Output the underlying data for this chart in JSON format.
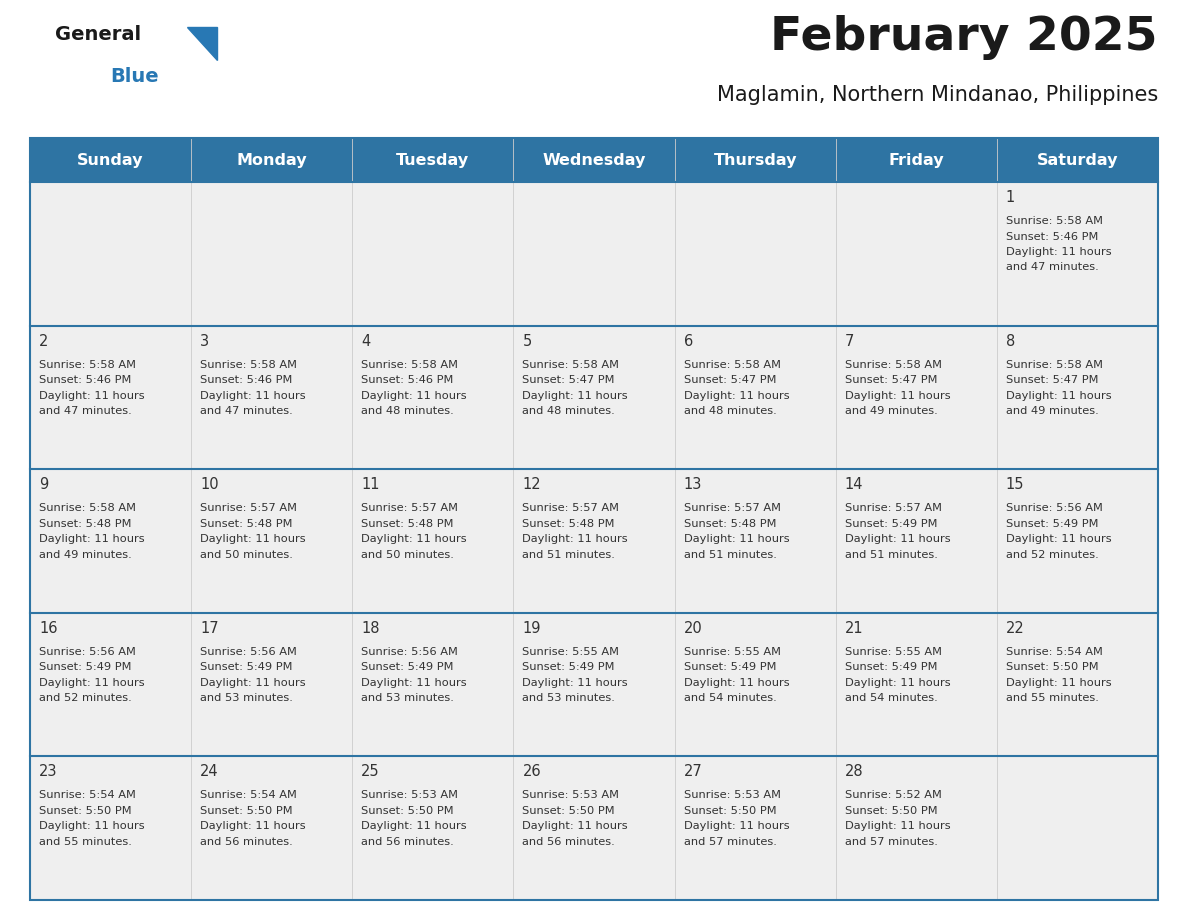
{
  "title": "February 2025",
  "subtitle": "Maglamin, Northern Mindanao, Philippines",
  "header_bg": "#2E74A3",
  "header_text_color": "#FFFFFF",
  "day_names": [
    "Sunday",
    "Monday",
    "Tuesday",
    "Wednesday",
    "Thursday",
    "Friday",
    "Saturday"
  ],
  "cell_bg": "#EFEFEF",
  "divider_color": "#2E74A3",
  "text_color": "#333333",
  "logo_general_color": "#1A1A1A",
  "logo_blue_color": "#2878B4",
  "calendar": [
    [
      null,
      null,
      null,
      null,
      null,
      null,
      1
    ],
    [
      2,
      3,
      4,
      5,
      6,
      7,
      8
    ],
    [
      9,
      10,
      11,
      12,
      13,
      14,
      15
    ],
    [
      16,
      17,
      18,
      19,
      20,
      21,
      22
    ],
    [
      23,
      24,
      25,
      26,
      27,
      28,
      null
    ]
  ],
  "sun_data": {
    "1": {
      "rise": "5:58 AM",
      "set": "5:46 PM",
      "daylight": "11 hours and 47 minutes."
    },
    "2": {
      "rise": "5:58 AM",
      "set": "5:46 PM",
      "daylight": "11 hours and 47 minutes."
    },
    "3": {
      "rise": "5:58 AM",
      "set": "5:46 PM",
      "daylight": "11 hours and 47 minutes."
    },
    "4": {
      "rise": "5:58 AM",
      "set": "5:46 PM",
      "daylight": "11 hours and 48 minutes."
    },
    "5": {
      "rise": "5:58 AM",
      "set": "5:47 PM",
      "daylight": "11 hours and 48 minutes."
    },
    "6": {
      "rise": "5:58 AM",
      "set": "5:47 PM",
      "daylight": "11 hours and 48 minutes."
    },
    "7": {
      "rise": "5:58 AM",
      "set": "5:47 PM",
      "daylight": "11 hours and 49 minutes."
    },
    "8": {
      "rise": "5:58 AM",
      "set": "5:47 PM",
      "daylight": "11 hours and 49 minutes."
    },
    "9": {
      "rise": "5:58 AM",
      "set": "5:48 PM",
      "daylight": "11 hours and 49 minutes."
    },
    "10": {
      "rise": "5:57 AM",
      "set": "5:48 PM",
      "daylight": "11 hours and 50 minutes."
    },
    "11": {
      "rise": "5:57 AM",
      "set": "5:48 PM",
      "daylight": "11 hours and 50 minutes."
    },
    "12": {
      "rise": "5:57 AM",
      "set": "5:48 PM",
      "daylight": "11 hours and 51 minutes."
    },
    "13": {
      "rise": "5:57 AM",
      "set": "5:48 PM",
      "daylight": "11 hours and 51 minutes."
    },
    "14": {
      "rise": "5:57 AM",
      "set": "5:49 PM",
      "daylight": "11 hours and 51 minutes."
    },
    "15": {
      "rise": "5:56 AM",
      "set": "5:49 PM",
      "daylight": "11 hours and 52 minutes."
    },
    "16": {
      "rise": "5:56 AM",
      "set": "5:49 PM",
      "daylight": "11 hours and 52 minutes."
    },
    "17": {
      "rise": "5:56 AM",
      "set": "5:49 PM",
      "daylight": "11 hours and 53 minutes."
    },
    "18": {
      "rise": "5:56 AM",
      "set": "5:49 PM",
      "daylight": "11 hours and 53 minutes."
    },
    "19": {
      "rise": "5:55 AM",
      "set": "5:49 PM",
      "daylight": "11 hours and 53 minutes."
    },
    "20": {
      "rise": "5:55 AM",
      "set": "5:49 PM",
      "daylight": "11 hours and 54 minutes."
    },
    "21": {
      "rise": "5:55 AM",
      "set": "5:49 PM",
      "daylight": "11 hours and 54 minutes."
    },
    "22": {
      "rise": "5:54 AM",
      "set": "5:50 PM",
      "daylight": "11 hours and 55 minutes."
    },
    "23": {
      "rise": "5:54 AM",
      "set": "5:50 PM",
      "daylight": "11 hours and 55 minutes."
    },
    "24": {
      "rise": "5:54 AM",
      "set": "5:50 PM",
      "daylight": "11 hours and 56 minutes."
    },
    "25": {
      "rise": "5:53 AM",
      "set": "5:50 PM",
      "daylight": "11 hours and 56 minutes."
    },
    "26": {
      "rise": "5:53 AM",
      "set": "5:50 PM",
      "daylight": "11 hours and 56 minutes."
    },
    "27": {
      "rise": "5:53 AM",
      "set": "5:50 PM",
      "daylight": "11 hours and 57 minutes."
    },
    "28": {
      "rise": "5:52 AM",
      "set": "5:50 PM",
      "daylight": "11 hours and 57 minutes."
    }
  },
  "fig_width": 11.88,
  "fig_height": 9.18,
  "dpi": 100
}
